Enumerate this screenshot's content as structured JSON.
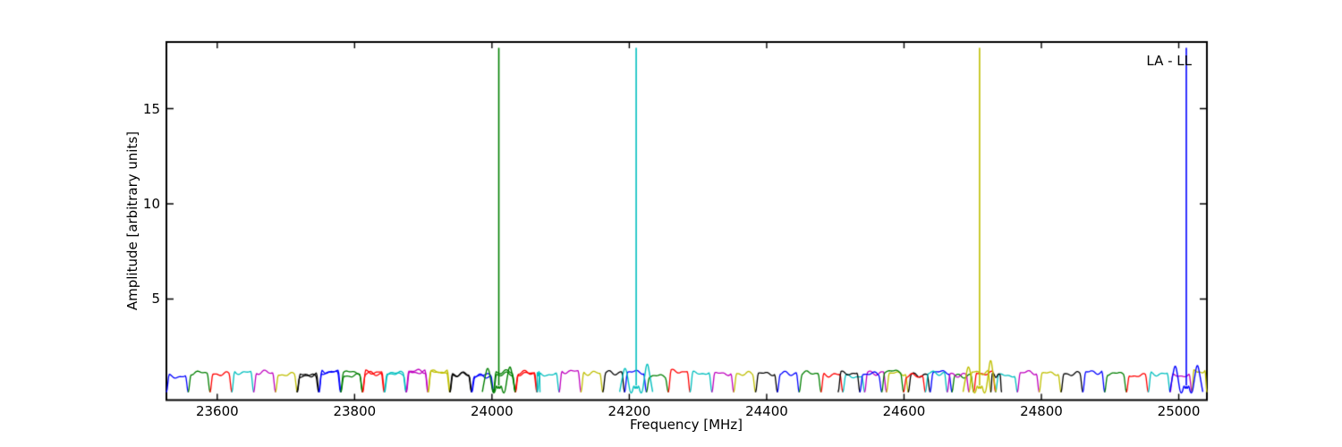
{
  "figure": {
    "corner_label": "LA - LL",
    "background_color": "#ffffff",
    "frame_color": "#000000"
  },
  "chart_data": {
    "type": "line",
    "title": "",
    "xlabel": "Frequency [MHz]",
    "ylabel": "Amplitude [arbitrary units]",
    "annotation": {
      "text": "LA - LL",
      "position": "top-right-inside-axes"
    },
    "xlim": [
      23526,
      25041
    ],
    "ylim": [
      -0.31,
      18.5
    ],
    "x_ticks": [
      23600,
      23800,
      24000,
      24200,
      24400,
      24600,
      24800,
      25000
    ],
    "x_tick_labels": [
      "23600",
      "23800",
      "24000",
      "24200",
      "24400",
      "24600",
      "24800",
      "25000"
    ],
    "y_ticks": [
      5,
      10,
      15
    ],
    "y_tick_labels": [
      "5",
      "10",
      "15"
    ],
    "grid": false,
    "legend_position": "none",
    "color_cycle": [
      "#0000ff",
      "#007f00",
      "#ff0000",
      "#00bfbf",
      "#bf00bf",
      "#bfbf00",
      "#000000"
    ],
    "baseline_subbands": {
      "description": "Contiguous bandpass-shaped subband humps across the whole frequency range, each drawn in the next color of the b-g-r-c-m-y-k matplotlib cycle; amplitude plateau ~1.0-1.25, dips to ~0.1 at subband edges",
      "subband_width_mhz": 31.77,
      "plateau_amplitude": 1.05,
      "primary_comb": {
        "start_mhz": 23526,
        "end_mhz": 25041,
        "cycle_start_index": 0
      },
      "overlap_combs": [
        {
          "start_mhz": 23716,
          "end_mhz": 24070,
          "cycle_start_index": 6
        },
        {
          "start_mhz": 24504,
          "end_mhz": 24742,
          "cycle_start_index": 6
        }
      ]
    },
    "spikes": [
      {
        "frequency_mhz": 24010,
        "amplitude": 18.2,
        "color": "#007f00",
        "side_lobe_left": 1.5,
        "side_lobe_right": 1.6
      },
      {
        "frequency_mhz": 24210,
        "amplitude": 18.2,
        "color": "#00bfbf",
        "side_lobe_left": 1.5,
        "side_lobe_right": 1.8
      },
      {
        "frequency_mhz": 24710,
        "amplitude": 18.2,
        "color": "#bfbf00",
        "side_lobe_left": 1.6,
        "side_lobe_right": 2.05
      },
      {
        "frequency_mhz": 25011,
        "amplitude": 18.2,
        "color": "#0000ff",
        "side_lobe_left": 1.65,
        "side_lobe_right": 1.7
      }
    ]
  }
}
